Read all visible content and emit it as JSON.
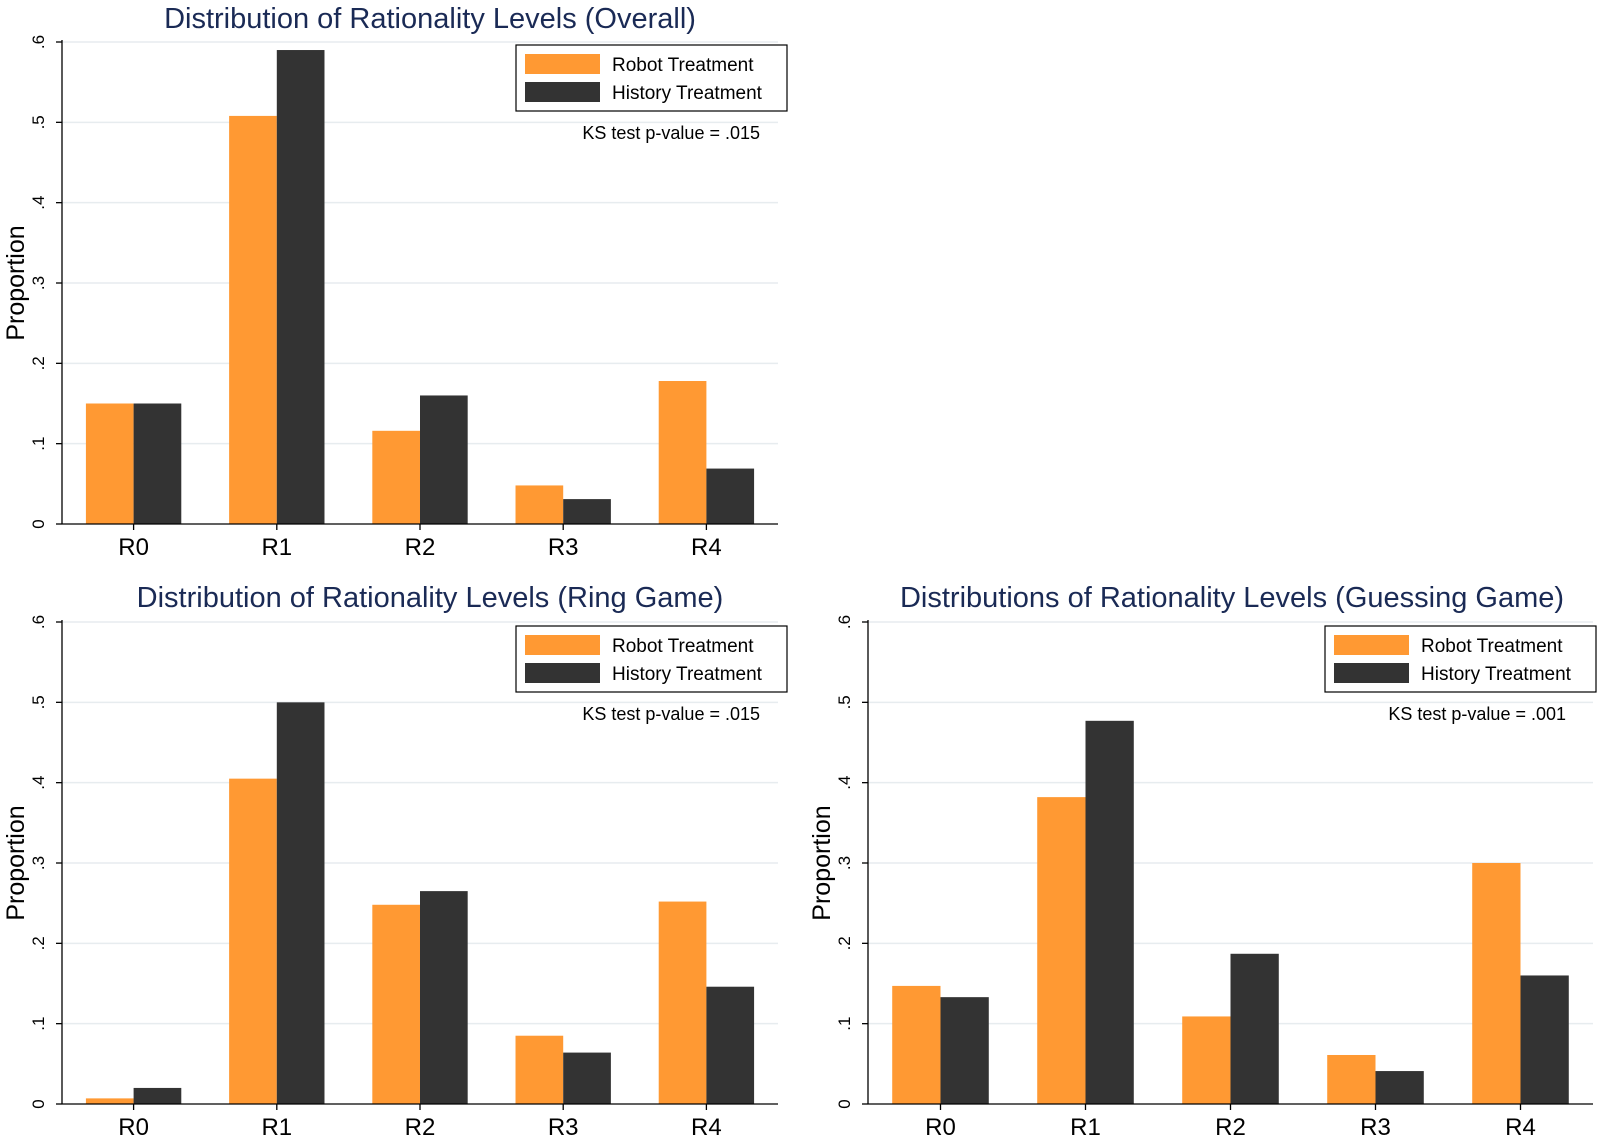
{
  "chart_data": [
    {
      "type": "bar",
      "title": "Distribution of Rationality Levels (Overall)",
      "ylabel": "Proportion",
      "xlabel": "",
      "ylim": [
        0,
        0.6
      ],
      "yticks": [
        0,
        0.1,
        0.2,
        0.3,
        0.4,
        0.5,
        0.6
      ],
      "ytick_labels": [
        "0",
        ".1",
        ".2",
        ".3",
        ".4",
        ".5",
        ".6"
      ],
      "categories": [
        "R0",
        "R1",
        "R2",
        "R3",
        "R4"
      ],
      "series": [
        {
          "name": "Robot Treatment",
          "values": [
            0.15,
            0.508,
            0.116,
            0.048,
            0.178
          ]
        },
        {
          "name": "History Treatment",
          "values": [
            0.15,
            0.59,
            0.16,
            0.031,
            0.069
          ]
        }
      ],
      "annotation": "KS test p-value = .015",
      "legend_position": "top-right",
      "grid": true
    },
    {
      "type": "bar",
      "title": "Distribution of Rationality Levels (Ring Game)",
      "ylabel": "Proportion",
      "xlabel": "",
      "ylim": [
        0,
        0.6
      ],
      "yticks": [
        0,
        0.1,
        0.2,
        0.3,
        0.4,
        0.5,
        0.6
      ],
      "ytick_labels": [
        "0",
        ".1",
        ".2",
        ".3",
        ".4",
        ".5",
        ".6"
      ],
      "categories": [
        "R0",
        "R1",
        "R2",
        "R3",
        "R4"
      ],
      "series": [
        {
          "name": "Robot Treatment",
          "values": [
            0.007,
            0.405,
            0.248,
            0.085,
            0.252
          ]
        },
        {
          "name": "History Treatment",
          "values": [
            0.02,
            0.5,
            0.265,
            0.064,
            0.146
          ]
        }
      ],
      "annotation": "KS test p-value = .015",
      "legend_position": "top-right",
      "grid": true
    },
    {
      "type": "bar",
      "title": "Distributions of Rationality Levels (Guessing Game)",
      "ylabel": "Proportion",
      "xlabel": "",
      "ylim": [
        0,
        0.6
      ],
      "yticks": [
        0,
        0.1,
        0.2,
        0.3,
        0.4,
        0.5,
        0.6
      ],
      "ytick_labels": [
        "0",
        ".1",
        ".2",
        ".3",
        ".4",
        ".5",
        ".6"
      ],
      "categories": [
        "R0",
        "R1",
        "R2",
        "R3",
        "R4"
      ],
      "series": [
        {
          "name": "Robot Treatment",
          "values": [
            0.147,
            0.382,
            0.109,
            0.061,
            0.3
          ]
        },
        {
          "name": "History Treatment",
          "values": [
            0.133,
            0.477,
            0.187,
            0.041,
            0.16
          ]
        }
      ],
      "annotation": "KS test p-value = .001",
      "legend_position": "top-right",
      "grid": true
    }
  ],
  "colors": {
    "robot": "#ff9933",
    "history": "#333333",
    "title": "#1a2a55",
    "grid": "#e7ecef"
  }
}
